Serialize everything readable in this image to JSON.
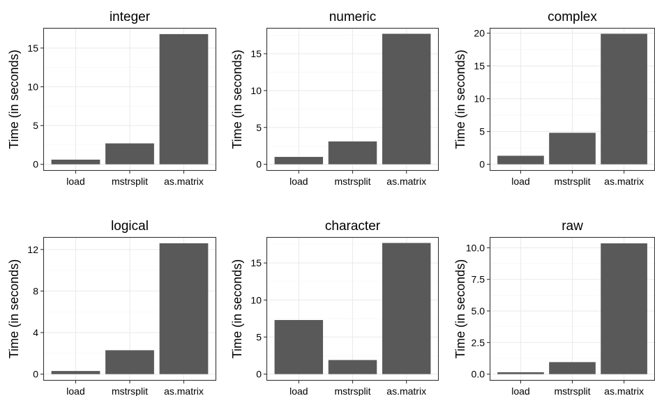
{
  "colors": {
    "bar_fill": "#595959",
    "background": "#ffffff",
    "grid_major": "#ebebeb",
    "grid_minor": "#f5f5f5",
    "frame": "#333333"
  },
  "chart_data": [
    {
      "type": "bar",
      "title": "integer",
      "categories": [
        "load",
        "mstrsplit",
        "as.matrix"
      ],
      "values": [
        0.6,
        2.7,
        16.8
      ],
      "ylabel": "Time (in seconds)",
      "ylim": [
        0,
        17.6
      ],
      "yticks": [
        0,
        5,
        10,
        15
      ],
      "ytick_labels": [
        "0",
        "5",
        "10",
        "15"
      ],
      "grid": true
    },
    {
      "type": "bar",
      "title": "numeric",
      "categories": [
        "load",
        "mstrsplit",
        "as.matrix"
      ],
      "values": [
        1.0,
        3.1,
        17.7
      ],
      "ylabel": "Time (in seconds)",
      "ylim": [
        0,
        18.5
      ],
      "yticks": [
        0,
        5,
        10,
        15
      ],
      "ytick_labels": [
        "0",
        "5",
        "10",
        "15"
      ],
      "grid": true
    },
    {
      "type": "bar",
      "title": "complex",
      "categories": [
        "load",
        "mstrsplit",
        "as.matrix"
      ],
      "values": [
        1.3,
        4.8,
        19.9
      ],
      "ylabel": "Time (in seconds)",
      "ylim": [
        0,
        20.8
      ],
      "yticks": [
        0,
        5,
        10,
        15,
        20
      ],
      "ytick_labels": [
        "0",
        "5",
        "10",
        "15",
        "20"
      ],
      "grid": true
    },
    {
      "type": "bar",
      "title": "logical",
      "categories": [
        "load",
        "mstrsplit",
        "as.matrix"
      ],
      "values": [
        0.3,
        2.3,
        12.6
      ],
      "ylabel": "Time (in seconds)",
      "ylim": [
        0,
        13.2
      ],
      "yticks": [
        0,
        4,
        8,
        12
      ],
      "ytick_labels": [
        "0",
        "4",
        "8",
        "12"
      ],
      "grid": true
    },
    {
      "type": "bar",
      "title": "character",
      "categories": [
        "load",
        "mstrsplit",
        "as.matrix"
      ],
      "values": [
        7.3,
        1.9,
        17.7
      ],
      "ylabel": "Time (in seconds)",
      "ylim": [
        0,
        18.5
      ],
      "yticks": [
        0,
        5,
        10,
        15
      ],
      "ytick_labels": [
        "0",
        "5",
        "10",
        "15"
      ],
      "grid": true
    },
    {
      "type": "bar",
      "title": "raw",
      "categories": [
        "load",
        "mstrsplit",
        "as.matrix"
      ],
      "values": [
        0.15,
        0.95,
        10.35
      ],
      "ylabel": "Time (in seconds)",
      "ylim": [
        0,
        10.85
      ],
      "yticks": [
        0,
        2.5,
        5,
        7.5,
        10
      ],
      "ytick_labels": [
        "0.0",
        "2.5",
        "5.0",
        "7.5",
        "10.0"
      ],
      "grid": true
    }
  ]
}
